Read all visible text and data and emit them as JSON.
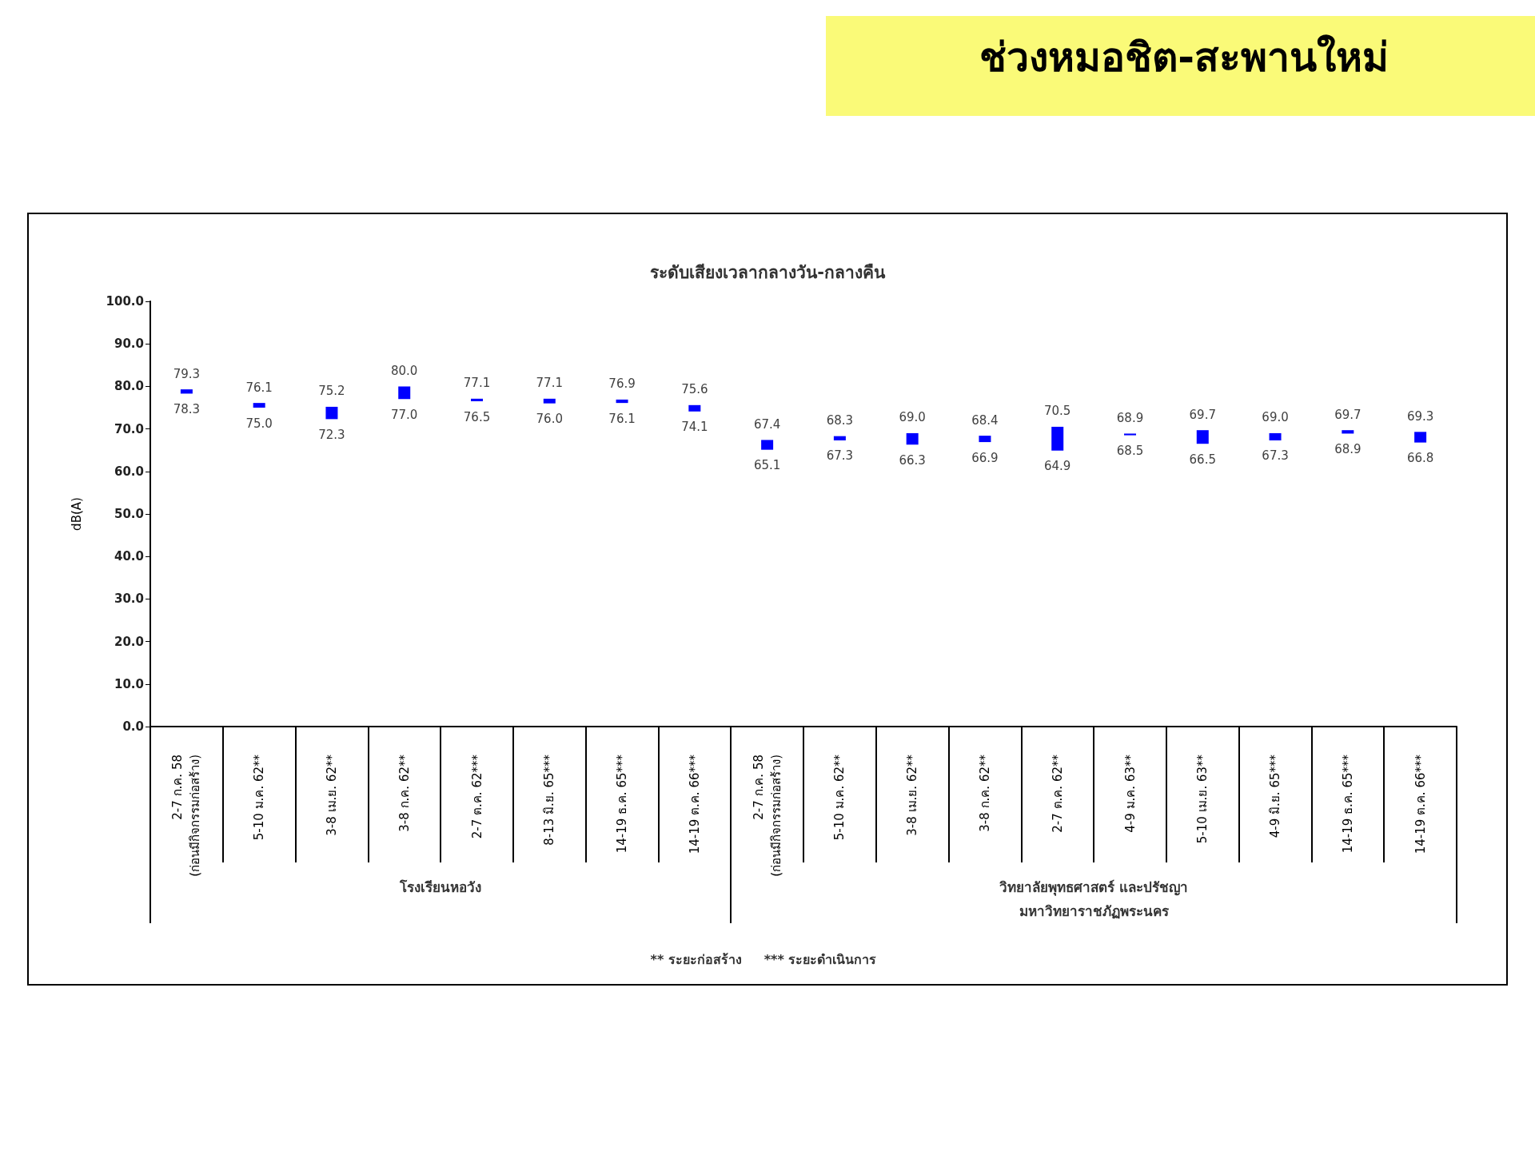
{
  "chart_data": {
    "type": "bar",
    "title": "ช่วงหมอชิต-สะพานใหม่",
    "subtitle": "ระดับเสียงเวลากลางวัน-กลางคืน",
    "ylabel": "dB(A)",
    "categories": [
      "2-7 ก.ค. 58\n(ก่อนมีกิจกรรมก่อสร้าง)",
      "5-10 ม.ค. 62**",
      "3-8 เม.ย. 62**",
      "3-8 ก.ค. 62**",
      "2-7 ต.ค. 62***",
      "8-13 มิ.ย. 65***",
      "14-19 ธ.ค. 65***",
      "14-19 ต.ค. 66***",
      "2-7 ก.ค. 58\n(ก่อนมีกิจกรรมก่อสร้าง)",
      "5-10 ม.ค. 62**",
      "3-8 เม.ย. 62**",
      "3-8 ก.ค. 62**",
      "2-7 ต.ค. 62**",
      "4-9 ม.ค. 63**",
      "5-10 เม.ย. 63**",
      "4-9 มิ.ย. 65***",
      "14-19 ธ.ค. 65***",
      "14-19 ต.ค. 66***"
    ],
    "base": [
      78.3,
      75.0,
      72.3,
      77.0,
      76.5,
      76.0,
      76.1,
      74.1,
      65.1,
      67.3,
      66.3,
      66.9,
      64.9,
      68.5,
      66.5,
      67.3,
      68.9,
      66.8
    ],
    "values": [
      1.0,
      1.1,
      2.9,
      3.0,
      0.6,
      1.1,
      0.8,
      1.5,
      2.3,
      1.0,
      2.7,
      1.5,
      5.6,
      0.4,
      3.2,
      1.7,
      0.8,
      2.5
    ],
    "color": "#0000ff",
    "ylim": [
      0,
      100
    ],
    "yticks": [
      {
        "value": 0,
        "label": "0.0"
      },
      {
        "value": 10,
        "label": "10.0"
      },
      {
        "value": 20,
        "label": "20.0"
      },
      {
        "value": 30,
        "label": "30.0"
      },
      {
        "value": 40,
        "label": "40.0"
      },
      {
        "value": 50,
        "label": "50.0"
      },
      {
        "value": 60,
        "label": "60.0"
      },
      {
        "value": 70,
        "label": "70.0"
      },
      {
        "value": 80,
        "label": "80.0"
      },
      {
        "value": 90,
        "label": "90.0"
      },
      {
        "value": 100,
        "label": "100.0"
      }
    ],
    "grid": false,
    "annotations": [
      "79.3",
      "78.3",
      "76.1",
      "75.0",
      "75.2",
      "72.3",
      "80.0",
      "77.0",
      "77.1",
      "76.5",
      "77.1",
      "76.0",
      "76.9",
      "76.1",
      "75.6",
      "74.1",
      "67.4",
      "65.1",
      "68.3",
      "67.3",
      "69.0",
      "66.3",
      "68.4",
      "66.9",
      "70.5",
      "64.9",
      "68.9",
      "68.5",
      "69.7",
      "66.5",
      "69.0",
      "67.3",
      "69.7",
      "68.9",
      "69.3",
      "66.8",
      "โรงเรียนหอวัง",
      "วิทยาลัยพุทธศาสตร์ และปรัชญา\nมหาวิทยาราชภัฏพระนคร",
      "** ระยะก่อสร้าง     *** ระยะดำเนินการ"
    ]
  }
}
